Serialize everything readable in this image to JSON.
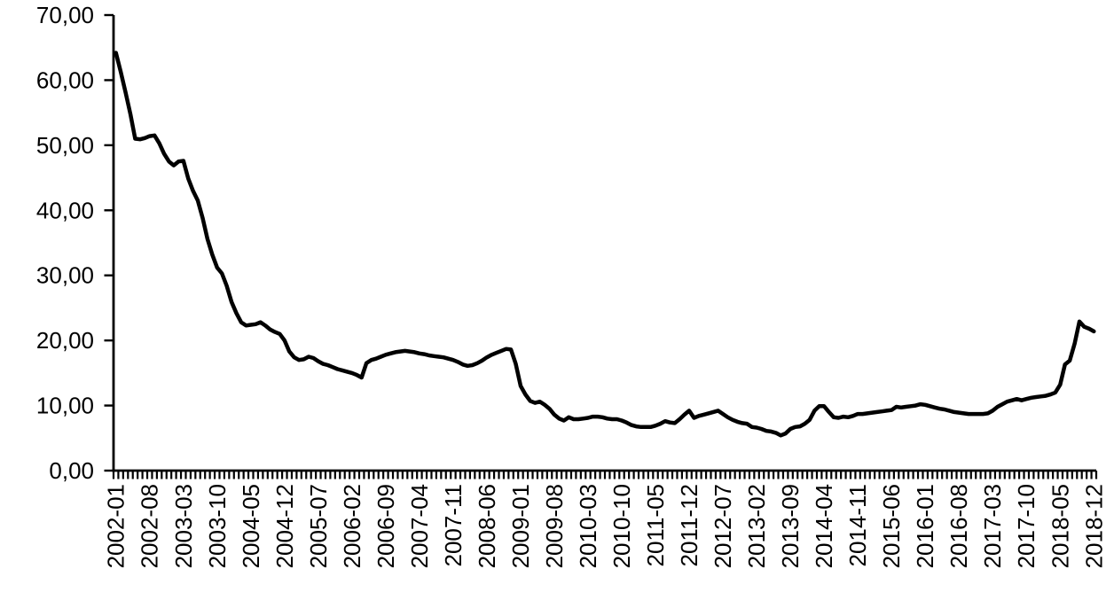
{
  "chart_data": {
    "type": "line",
    "title": "",
    "xlabel": "",
    "ylabel": "",
    "x_start": "2002-01",
    "x_end": "2018-12",
    "x_frequency": "monthly",
    "n_points": 204,
    "x_label_interval_months": 7,
    "x_tick_labels": [
      "2002-01",
      "2002-08",
      "2003-03",
      "2003-10",
      "2004-05",
      "2004-12",
      "2005-07",
      "2006-02",
      "2006-09",
      "2007-04",
      "2007-11",
      "2008-06",
      "2009-01",
      "2009-08",
      "2010-03",
      "2010-10",
      "2011-05",
      "2011-12",
      "2012-07",
      "2013-02",
      "2013-09",
      "2014-04",
      "2014-11",
      "2015-06",
      "2016-01",
      "2016-08",
      "2017-03",
      "2017-10",
      "2018-05",
      "2018-12"
    ],
    "y_tick_labels": [
      "0,00",
      "10,00",
      "20,00",
      "30,00",
      "40,00",
      "50,00",
      "60,00",
      "70,00"
    ],
    "ylim": [
      0,
      70
    ],
    "y_tick_step": 10,
    "decimal_separator": ",",
    "grid": "off",
    "legend": "none",
    "line_color": "#000000",
    "axis_color": "#000000",
    "background_color": "#ffffff",
    "series": [
      {
        "name": "value",
        "values": [
          64.2,
          61.3,
          58.1,
          54.8,
          51.0,
          50.9,
          51.1,
          51.4,
          51.5,
          50.3,
          48.7,
          47.5,
          46.9,
          47.5,
          47.6,
          44.9,
          43.0,
          41.5,
          38.8,
          35.6,
          33.2,
          31.2,
          30.3,
          28.4,
          25.9,
          24.2,
          22.8,
          22.3,
          22.4,
          22.5,
          22.8,
          22.3,
          21.7,
          21.3,
          21.0,
          20.0,
          18.3,
          17.4,
          17.0,
          17.1,
          17.5,
          17.3,
          16.8,
          16.4,
          16.2,
          15.9,
          15.6,
          15.4,
          15.2,
          15.0,
          14.7,
          14.3,
          16.5,
          17.0,
          17.2,
          17.5,
          17.8,
          18.0,
          18.2,
          18.3,
          18.4,
          18.3,
          18.2,
          18.0,
          17.9,
          17.7,
          17.6,
          17.5,
          17.4,
          17.2,
          17.0,
          16.7,
          16.3,
          16.1,
          16.2,
          16.5,
          16.9,
          17.4,
          17.8,
          18.1,
          18.4,
          18.7,
          18.6,
          16.4,
          13.0,
          11.7,
          10.7,
          10.4,
          10.6,
          10.1,
          9.5,
          8.6,
          8.0,
          7.7,
          8.2,
          7.9,
          7.9,
          8.0,
          8.1,
          8.3,
          8.3,
          8.2,
          8.0,
          7.9,
          7.9,
          7.7,
          7.4,
          7.0,
          6.8,
          6.7,
          6.7,
          6.7,
          6.9,
          7.2,
          7.6,
          7.4,
          7.3,
          7.9,
          8.6,
          9.2,
          8.1,
          8.4,
          8.6,
          8.8,
          9.0,
          9.2,
          8.7,
          8.2,
          7.8,
          7.5,
          7.3,
          7.2,
          6.7,
          6.6,
          6.4,
          6.1,
          6.0,
          5.8,
          5.4,
          5.7,
          6.4,
          6.7,
          6.8,
          7.2,
          7.8,
          9.2,
          9.9,
          9.9,
          9.0,
          8.2,
          8.1,
          8.3,
          8.2,
          8.4,
          8.7,
          8.7,
          8.8,
          8.9,
          9.0,
          9.1,
          9.2,
          9.3,
          9.8,
          9.7,
          9.8,
          9.9,
          10.0,
          10.2,
          10.1,
          9.9,
          9.7,
          9.5,
          9.4,
          9.2,
          9.0,
          8.9,
          8.8,
          8.7,
          8.7,
          8.7,
          8.7,
          8.8,
          9.2,
          9.8,
          10.2,
          10.6,
          10.8,
          11.0,
          10.8,
          11.0,
          11.2,
          11.3,
          11.4,
          11.5,
          11.7,
          12.0,
          13.2,
          16.3,
          16.9,
          19.5,
          22.9,
          22.1,
          21.8,
          21.4
        ]
      }
    ]
  }
}
